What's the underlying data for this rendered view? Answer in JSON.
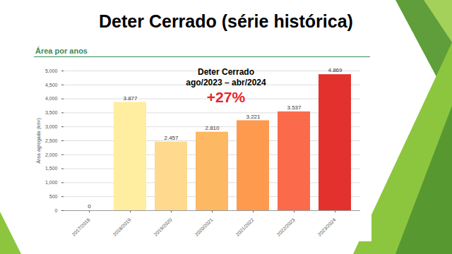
{
  "slide_title": "Deter Cerrado (série histórica)",
  "chart_data": {
    "type": "bar",
    "title": "Área por anos",
    "y_label": "Área agregada (km²)",
    "categories": [
      "2017/2018",
      "2018/2019",
      "2019/2020",
      "2020/2021",
      "2021/2022",
      "2022/2023",
      "2023/2024"
    ],
    "values": [
      0,
      3877,
      2457,
      2810,
      3221,
      3537,
      4869
    ],
    "value_labels": [
      "0",
      "3.877",
      "2.457",
      "2.810",
      "3.221",
      "3.537",
      "4.869"
    ],
    "colors": [
      "#ffeda0",
      "#ffeda0",
      "#fed98e",
      "#fdb863",
      "#fd9a4e",
      "#fb6a4a",
      "#e3312d"
    ],
    "ylim": [
      0,
      5000
    ],
    "yticks": [
      0,
      500,
      {
        "value": 1000,
        "label": "1,000"
      },
      {
        "value": 1500,
        "label": "1,500"
      },
      {
        "value": 2000,
        "label": "2,000"
      },
      {
        "value": 2500,
        "label": "2,500"
      },
      {
        "value": 3000,
        "label": "3,000"
      },
      {
        "value": 3500,
        "label": "3,500"
      },
      {
        "value": 4000,
        "label": "4,000"
      },
      {
        "value": 4500,
        "label": "4,500"
      },
      {
        "value": 5000,
        "label": "5,000"
      }
    ],
    "grid": true,
    "data_labels": true,
    "annotations": [
      "Deter Cerrado",
      "ago/2023 – abr/2024",
      "+27%"
    ]
  }
}
